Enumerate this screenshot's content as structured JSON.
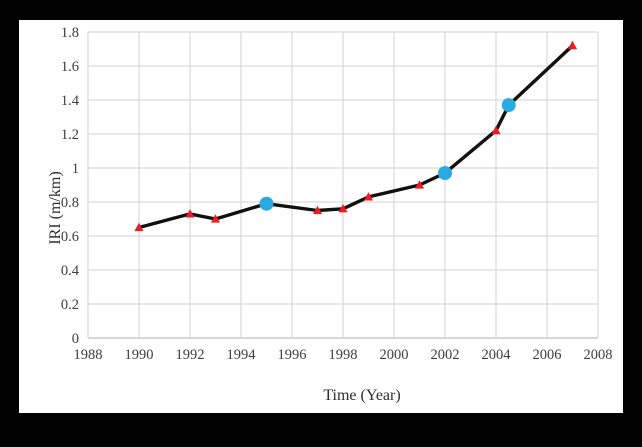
{
  "figure": {
    "background_color": "#000000",
    "panel_color": "#ffffff"
  },
  "chart_data": {
    "type": "line",
    "title": "",
    "xlabel": "Time (Year)",
    "ylabel": "IRI (m/km)",
    "xlim": [
      1988,
      2008
    ],
    "ylim": [
      0,
      1.8
    ],
    "x_ticks": [
      1988,
      1990,
      1992,
      1994,
      1996,
      1998,
      2000,
      2002,
      2004,
      2006,
      2008
    ],
    "x_tick_labels": [
      "1988",
      "1990",
      "1992",
      "1994",
      "1996",
      "1998",
      "2000",
      "2002",
      "2004",
      "2006",
      "2008"
    ],
    "y_ticks": [
      0,
      0.2,
      0.4,
      0.6,
      0.8,
      1.0,
      1.2,
      1.4,
      1.6,
      1.8
    ],
    "y_tick_labels": [
      "0",
      "0.2",
      "0.4",
      "0.6",
      "0.8",
      "1",
      "1.2",
      "1.4",
      "1.6",
      "1.8"
    ],
    "grid": true,
    "legend": "none",
    "grid_color": "#d9d9d9",
    "axis_line_color": "#bfbfbf",
    "line_color": "#111111",
    "line_width": 3.4,
    "marker_styles": {
      "triangle": {
        "shape": "triangle-up",
        "color": "#ed1c24"
      },
      "circle": {
        "shape": "circle",
        "color": "#29abe2"
      }
    },
    "series": [
      {
        "name": "IRI",
        "points": [
          {
            "x": 1990,
            "y": 0.65,
            "marker": "triangle"
          },
          {
            "x": 1992,
            "y": 0.73,
            "marker": "triangle"
          },
          {
            "x": 1993,
            "y": 0.7,
            "marker": "triangle"
          },
          {
            "x": 1995,
            "y": 0.79,
            "marker": "circle"
          },
          {
            "x": 1997,
            "y": 0.75,
            "marker": "triangle"
          },
          {
            "x": 1998,
            "y": 0.76,
            "marker": "triangle"
          },
          {
            "x": 1999,
            "y": 0.83,
            "marker": "triangle"
          },
          {
            "x": 2001,
            "y": 0.9,
            "marker": "triangle"
          },
          {
            "x": 2002,
            "y": 0.97,
            "marker": "circle"
          },
          {
            "x": 2004,
            "y": 1.22,
            "marker": "triangle"
          },
          {
            "x": 2004.5,
            "y": 1.37,
            "marker": "circle"
          },
          {
            "x": 2007,
            "y": 1.72,
            "marker": "triangle"
          }
        ]
      }
    ]
  }
}
